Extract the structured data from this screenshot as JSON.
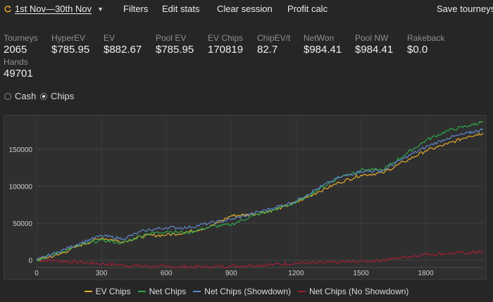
{
  "toolbar": {
    "date_range": "1st Nov—30th Nov",
    "filters": "Filters",
    "edit_stats": "Edit stats",
    "clear_session": "Clear session",
    "profit_calc": "Profit calc",
    "save_tourneys": "Save tourneys"
  },
  "stats": [
    {
      "label": "Tourneys",
      "value": "2065"
    },
    {
      "label": "HyperEV",
      "value": "$785.95"
    },
    {
      "label": "EV",
      "value": "$882.67"
    },
    {
      "label": "Pool EV",
      "value": "$785.95"
    },
    {
      "label": "EV Chips",
      "value": "170819"
    },
    {
      "label": "ChipEV/t",
      "value": "82.7"
    },
    {
      "label": "NetWon",
      "value": "$984.41"
    },
    {
      "label": "Pool NW",
      "value": "$984.41"
    },
    {
      "label": "Rakeback",
      "value": "$0.0"
    },
    {
      "label": "Hands",
      "value": "49701"
    }
  ],
  "mode": {
    "cash": "Cash",
    "chips": "Chips",
    "selected": "chips"
  },
  "chart_data": {
    "type": "line",
    "xlim": [
      0,
      2065
    ],
    "ylim": [
      -10000,
      190000
    ],
    "x_ticks": [
      0,
      300,
      600,
      900,
      1200,
      1500,
      1800
    ],
    "y_ticks": [
      0,
      50000,
      100000,
      150000
    ],
    "grid": true,
    "legend_position": "bottom",
    "series": [
      {
        "name": "EV Chips",
        "color": "#e6ac2e",
        "points": [
          [
            0,
            0
          ],
          [
            100,
            7000
          ],
          [
            200,
            20000
          ],
          [
            300,
            30000
          ],
          [
            400,
            25000
          ],
          [
            500,
            33000
          ],
          [
            600,
            34000
          ],
          [
            700,
            38000
          ],
          [
            800,
            45000
          ],
          [
            900,
            60000
          ],
          [
            1000,
            62000
          ],
          [
            1100,
            68000
          ],
          [
            1200,
            78000
          ],
          [
            1300,
            92000
          ],
          [
            1400,
            105000
          ],
          [
            1500,
            115000
          ],
          [
            1600,
            118000
          ],
          [
            1700,
            133000
          ],
          [
            1800,
            148000
          ],
          [
            1900,
            157000
          ],
          [
            2000,
            168000
          ],
          [
            2065,
            172000
          ]
        ]
      },
      {
        "name": "Net Chips",
        "color": "#2ea84a",
        "points": [
          [
            0,
            0
          ],
          [
            100,
            10000
          ],
          [
            200,
            20000
          ],
          [
            300,
            27000
          ],
          [
            400,
            23000
          ],
          [
            500,
            35000
          ],
          [
            600,
            39000
          ],
          [
            700,
            37000
          ],
          [
            800,
            45000
          ],
          [
            900,
            48000
          ],
          [
            1000,
            60000
          ],
          [
            1100,
            68000
          ],
          [
            1200,
            78000
          ],
          [
            1300,
            95000
          ],
          [
            1400,
            112000
          ],
          [
            1500,
            122000
          ],
          [
            1600,
            122000
          ],
          [
            1700,
            142000
          ],
          [
            1800,
            162000
          ],
          [
            1900,
            175000
          ],
          [
            2000,
            182000
          ],
          [
            2065,
            187000
          ]
        ]
      },
      {
        "name": "Net Chips (Showdown)",
        "color": "#5f87c8",
        "points": [
          [
            0,
            0
          ],
          [
            100,
            11000
          ],
          [
            200,
            23000
          ],
          [
            300,
            33000
          ],
          [
            400,
            29000
          ],
          [
            500,
            40000
          ],
          [
            600,
            44000
          ],
          [
            700,
            44000
          ],
          [
            800,
            50000
          ],
          [
            900,
            55000
          ],
          [
            1000,
            63000
          ],
          [
            1100,
            71000
          ],
          [
            1200,
            80000
          ],
          [
            1300,
            97000
          ],
          [
            1400,
            112000
          ],
          [
            1500,
            120000
          ],
          [
            1600,
            121000
          ],
          [
            1700,
            138000
          ],
          [
            1800,
            153000
          ],
          [
            1900,
            165000
          ],
          [
            2000,
            172000
          ],
          [
            2065,
            177000
          ]
        ]
      },
      {
        "name": "Net Chips (No Showdown)",
        "color": "#a51f37",
        "points": [
          [
            0,
            0
          ],
          [
            100,
            -1000
          ],
          [
            200,
            -3000
          ],
          [
            300,
            -5000
          ],
          [
            400,
            -7000
          ],
          [
            500,
            -8000
          ],
          [
            600,
            -9000
          ],
          [
            700,
            -9000
          ],
          [
            800,
            -9000
          ],
          [
            900,
            -8000
          ],
          [
            1000,
            -7000
          ],
          [
            1100,
            -6000
          ],
          [
            1200,
            -4000
          ],
          [
            1300,
            -4000
          ],
          [
            1400,
            -3000
          ],
          [
            1500,
            -2000
          ],
          [
            1600,
            0
          ],
          [
            1700,
            4000
          ],
          [
            1800,
            8000
          ],
          [
            1900,
            9000
          ],
          [
            2000,
            10000
          ],
          [
            2065,
            11000
          ]
        ]
      }
    ]
  }
}
